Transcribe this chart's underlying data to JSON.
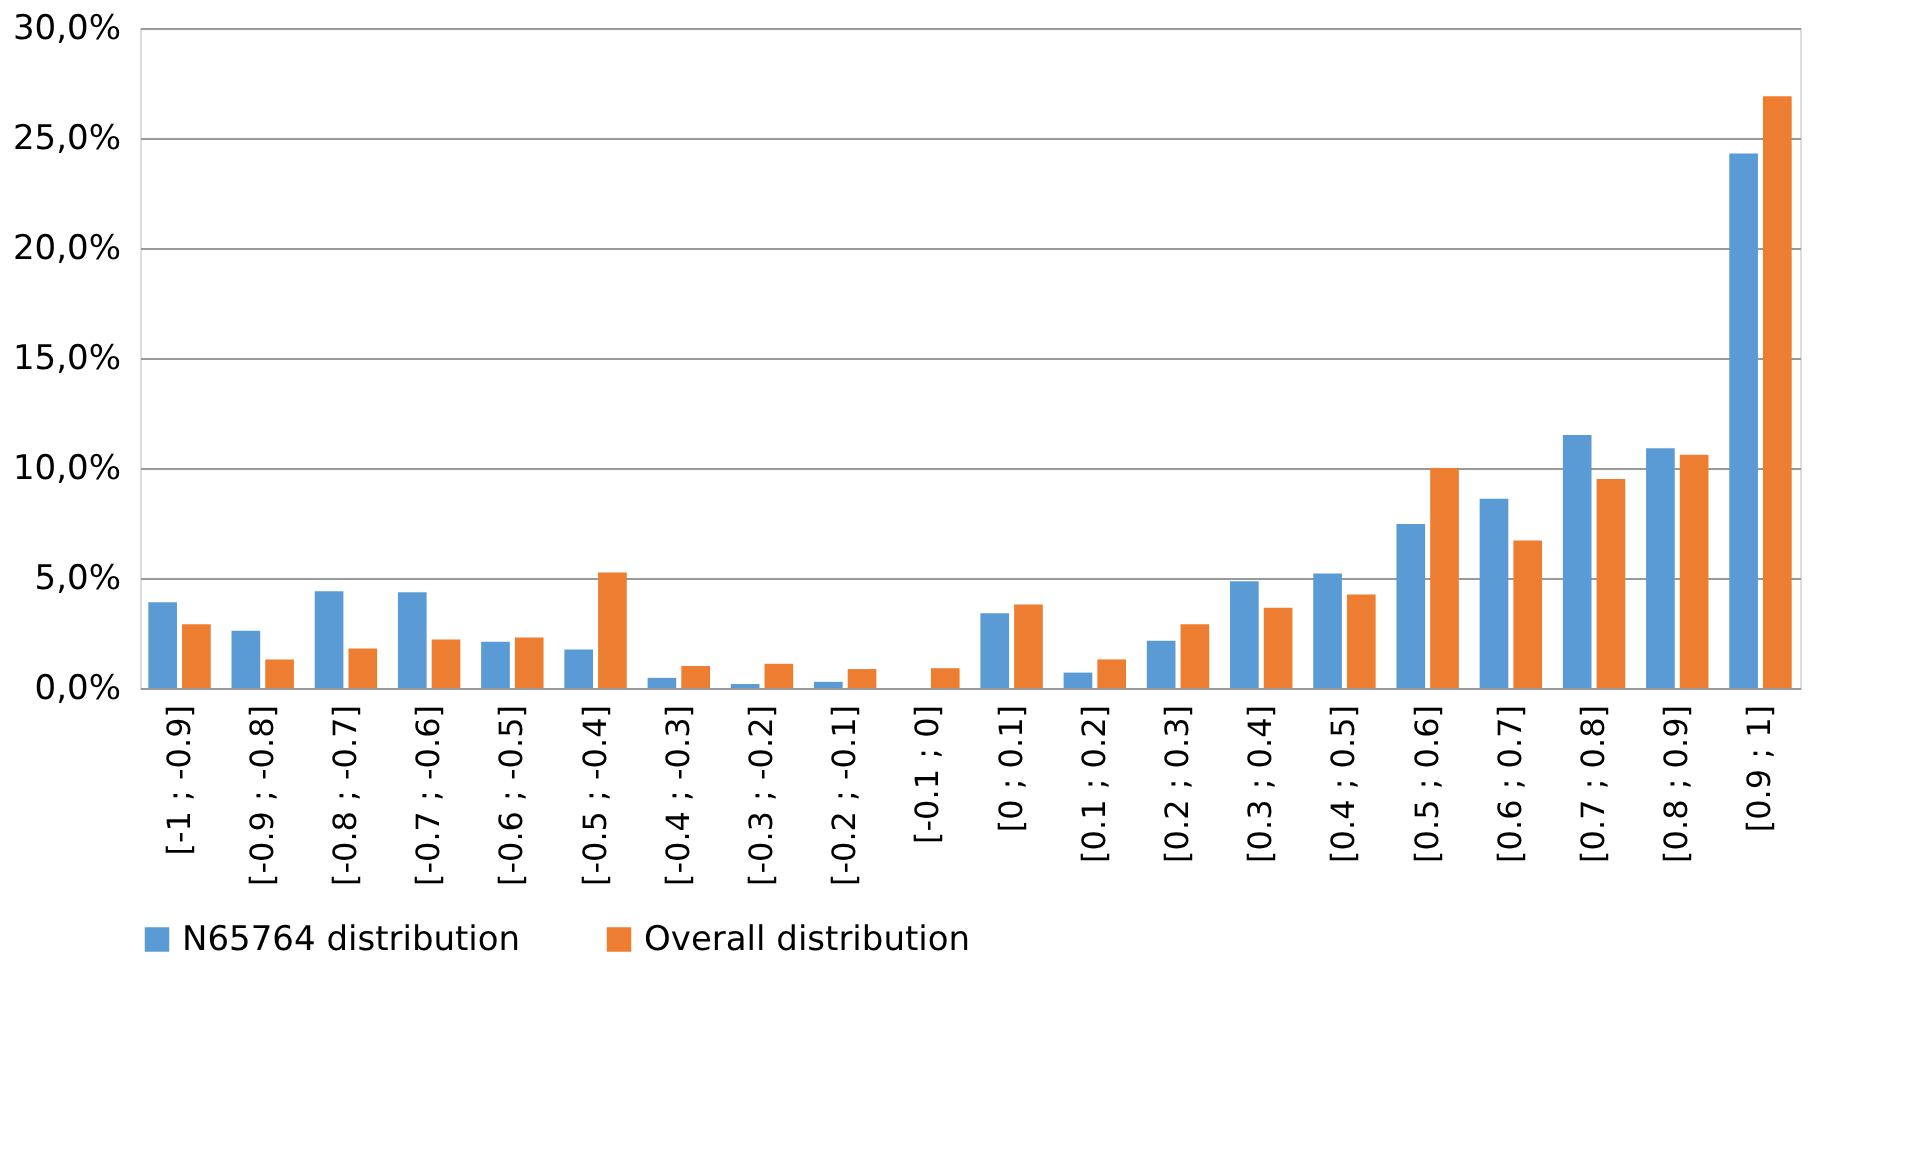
{
  "chart_data": {
    "type": "bar",
    "categories": [
      "[-1 ; -0.9]",
      "[-0.9 ; -0.8]",
      "[-0.8 ; -0.7]",
      "[-0.7 ; -0.6]",
      "[-0.6 ; -0.5]",
      "[-0.5 ; -0.4]",
      "[-0.4 ; -0.3]",
      "[-0.3 ; -0.2]",
      "[-0.2 ; -0.1]",
      "[-0.1 ; 0]",
      "[0 ; 0.1]",
      "[0.1 ; 0.2]",
      "[0.2 ; 0.3]",
      "[0.3 ; 0.4]",
      "[0.4 ; 0.5]",
      "[0.5 ; 0.6]",
      "[0.6 ; 0.7]",
      "[0.7 ; 0.8]",
      "[0.8 ; 0.9]",
      "[0.9 ; 1]"
    ],
    "series": [
      {
        "name": "N65764 distribution",
        "color": "#5b9bd5",
        "values": [
          3.9,
          2.6,
          4.4,
          4.35,
          2.1,
          1.75,
          0.46,
          0.18,
          0.28,
          0,
          3.4,
          0.7,
          2.15,
          4.85,
          5.2,
          7.45,
          8.6,
          11.5,
          10.9,
          24.3
        ]
      },
      {
        "name": "Overall distribution",
        "color": "#ed7d31",
        "values": [
          2.9,
          1.3,
          1.8,
          2.2,
          2.3,
          5.25,
          1.0,
          1.1,
          0.86,
          0.9,
          3.8,
          1.3,
          2.9,
          3.65,
          4.25,
          10.0,
          6.7,
          9.5,
          10.6,
          26.9
        ]
      }
    ],
    "ylim": [
      0,
      30
    ],
    "yticks": [
      {
        "value": 0,
        "label": "0,0%"
      },
      {
        "value": 5,
        "label": "5,0%"
      },
      {
        "value": 10,
        "label": "10,0%"
      },
      {
        "value": 15,
        "label": "15,0%"
      },
      {
        "value": 20,
        "label": "20,0%"
      },
      {
        "value": 25,
        "label": "25,0%"
      },
      {
        "value": 30,
        "label": "30,0%"
      }
    ],
    "grid": "y",
    "legend": "bottom"
  }
}
